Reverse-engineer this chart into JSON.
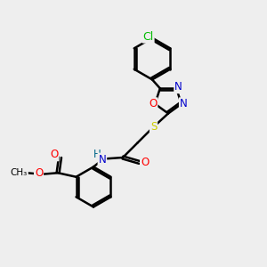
{
  "bg_color": "#eeeeee",
  "bond_color": "#000000",
  "bond_width": 1.8,
  "atom_colors": {
    "C": "#000000",
    "N": "#0000cc",
    "O": "#ff0000",
    "S": "#cccc00",
    "Cl": "#00bb00",
    "H": "#006688"
  },
  "font_size": 8.5,
  "fig_size": [
    3.0,
    3.0
  ],
  "dpi": 100
}
